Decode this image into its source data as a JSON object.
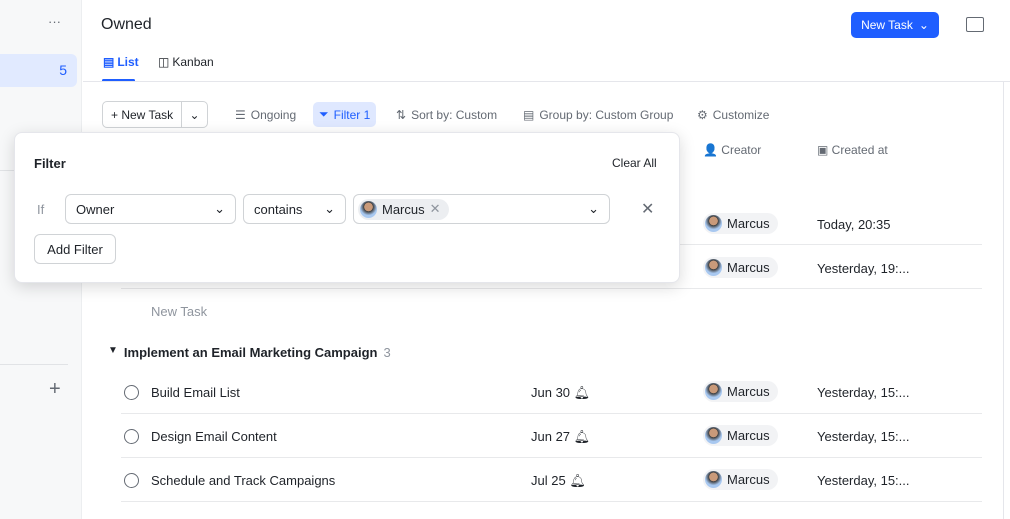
{
  "sidebar": {
    "more": "···",
    "count": "5",
    "add": "+"
  },
  "header": {
    "title": "Owned",
    "new_task": "New Task"
  },
  "tabs": [
    {
      "label": "List"
    },
    {
      "label": "Kanban"
    }
  ],
  "toolbar": {
    "new_task": "New Task",
    "ongoing": "Ongoing",
    "filter": "Filter 1",
    "sort": "Sort by: Custom",
    "group": "Group by: Custom Group",
    "customize": "Customize"
  },
  "columns": {
    "creator": "Creator",
    "created_at": "Created at"
  },
  "rows_top": [
    {
      "creator": "Marcus",
      "created": "Today, 20:35"
    },
    {
      "creator": "Marcus",
      "created": "Yesterday, 19:..."
    }
  ],
  "new_task_placeholder": "New Task",
  "group": {
    "name": "Implement an Email Marketing Campaign",
    "count": "3",
    "tasks": [
      {
        "title": "Build Email List",
        "due": "Jun 30",
        "creator": "Marcus",
        "created": "Yesterday, 15:..."
      },
      {
        "title": "Design Email Content",
        "due": "Jun 27",
        "creator": "Marcus",
        "created": "Yesterday, 15:..."
      },
      {
        "title": "Schedule and Track Campaigns",
        "due": "Jul 25",
        "creator": "Marcus",
        "created": "Yesterday, 15:..."
      }
    ]
  },
  "filter": {
    "title": "Filter",
    "clear": "Clear All",
    "if": "If",
    "field": "Owner",
    "op": "contains",
    "value": "Marcus",
    "add": "Add Filter"
  },
  "colors": {
    "accent": "#1f5eff",
    "filter_bg": "#dfe8ff"
  }
}
